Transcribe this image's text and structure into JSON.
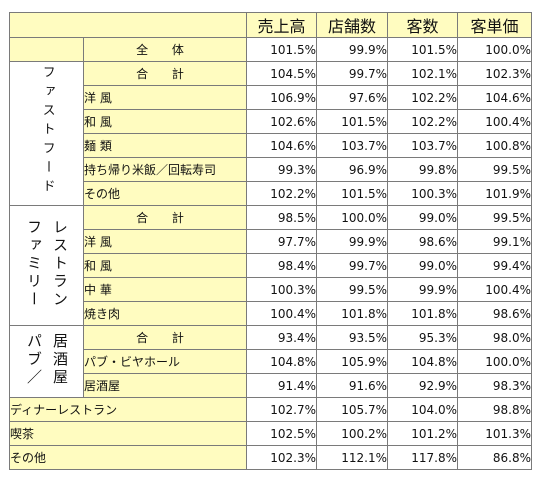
{
  "header": {
    "sales": "売上高",
    "stores": "店舗数",
    "customers": "客数",
    "unit_price": "客単価"
  },
  "overall": {
    "label": "全 体",
    "values": [
      "101.5%",
      "99.9%",
      "101.5%",
      "100.0%"
    ]
  },
  "fastfood": {
    "category": "ファストフード",
    "rows": [
      {
        "label": "合 計",
        "values": [
          "104.5%",
          "99.7%",
          "102.1%",
          "102.3%"
        ]
      },
      {
        "label": "洋 風",
        "values": [
          "106.9%",
          "97.6%",
          "102.2%",
          "104.6%"
        ]
      },
      {
        "label": "和 風",
        "values": [
          "102.6%",
          "101.5%",
          "102.2%",
          "100.4%"
        ]
      },
      {
        "label": "麺 類",
        "values": [
          "104.6%",
          "103.7%",
          "103.7%",
          "100.8%"
        ]
      },
      {
        "label": "持ち帰り米飯／回転寿司",
        "values": [
          "99.3%",
          "96.9%",
          "99.8%",
          "99.5%"
        ]
      },
      {
        "label": "その他",
        "values": [
          "102.2%",
          "101.5%",
          "100.3%",
          "101.9%"
        ]
      }
    ]
  },
  "family": {
    "category_line1": "ファミリー",
    "category_line2": "レストラン",
    "rows": [
      {
        "label": "合 計",
        "values": [
          "98.5%",
          "100.0%",
          "99.0%",
          "99.5%"
        ]
      },
      {
        "label": "洋 風",
        "values": [
          "97.7%",
          "99.9%",
          "98.6%",
          "99.1%"
        ]
      },
      {
        "label": "和 風",
        "values": [
          "98.4%",
          "99.7%",
          "99.0%",
          "99.4%"
        ]
      },
      {
        "label": "中 華",
        "values": [
          "100.3%",
          "99.5%",
          "99.9%",
          "100.4%"
        ]
      },
      {
        "label": "焼き肉",
        "values": [
          "100.4%",
          "101.8%",
          "101.8%",
          "98.6%"
        ]
      }
    ]
  },
  "pub": {
    "category_line1": "パブ／",
    "category_line2": "居酒屋",
    "rows": [
      {
        "label": "合 計",
        "values": [
          "93.4%",
          "93.5%",
          "95.3%",
          "98.0%"
        ]
      },
      {
        "label": "パブ・ビヤホール",
        "values": [
          "104.8%",
          "105.9%",
          "104.8%",
          "100.0%"
        ]
      },
      {
        "label": "居酒屋",
        "values": [
          "91.4%",
          "91.6%",
          "92.9%",
          "98.3%"
        ]
      }
    ]
  },
  "dinner": {
    "label": "ディナーレストラン",
    "values": [
      "102.7%",
      "105.7%",
      "104.0%",
      "98.8%"
    ]
  },
  "cafe": {
    "label": "喫茶",
    "values": [
      "102.5%",
      "100.2%",
      "101.2%",
      "101.3%"
    ]
  },
  "other": {
    "label": "その他",
    "values": [
      "102.3%",
      "112.1%",
      "117.8%",
      "86.8%"
    ]
  },
  "colors": {
    "label_bg": "#fffcc0",
    "cell_bg": "#ffffff",
    "border": "#7a7a7a"
  }
}
